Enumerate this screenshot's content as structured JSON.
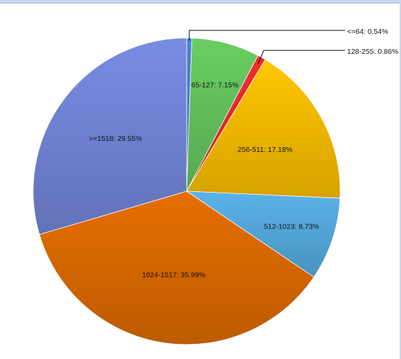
{
  "chart_data": {
    "type": "pie",
    "title": "",
    "start_angle_deg": 0,
    "direction": "clockwise",
    "slices": [
      {
        "label": "<=64",
        "value": 0.54,
        "display": "<=64: 0.54%",
        "color": "#4a78c9",
        "label_mode": "leader"
      },
      {
        "label": "65-127",
        "value": 7.15,
        "display": "65-127: 7.15%",
        "color": "#62bf5b",
        "label_mode": "inside"
      },
      {
        "label": "128-255",
        "value": 0.86,
        "display": "128-255: 0.86%",
        "color": "#e02b2b",
        "label_mode": "leader"
      },
      {
        "label": "256-511",
        "value": 17.18,
        "display": "256-511: 17.18%",
        "color": "#f3b800",
        "label_mode": "inside"
      },
      {
        "label": "512-1023",
        "value": 8.73,
        "display": "512-1023: 8.73%",
        "color": "#53a6d8",
        "label_mode": "inside"
      },
      {
        "label": "1024-1517",
        "value": 35.99,
        "display": "1024-1517: 35.99%",
        "color": "#d66700",
        "label_mode": "inside"
      },
      {
        "label": ">=1518",
        "value": 29.55,
        "display": ">=1518: 29.55%",
        "color": "#6f82d2",
        "label_mode": "inside"
      }
    ]
  }
}
